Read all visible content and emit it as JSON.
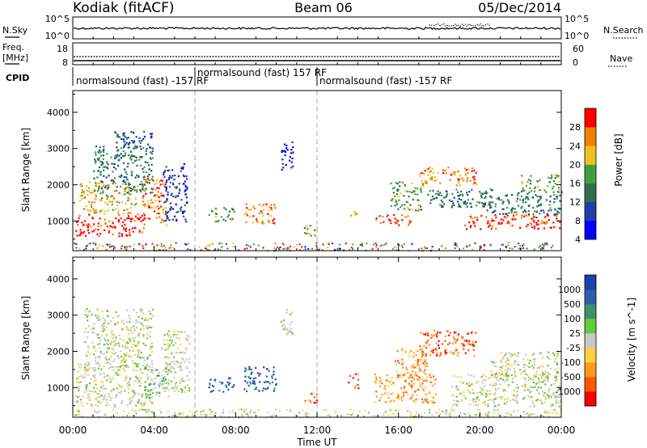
{
  "header": {
    "station": "Kodiak (fitACF)",
    "beam": "Beam 06",
    "date": "05/Dec/2014"
  },
  "noise_panel": {
    "left_label": "N.Sky",
    "right_label": "N.Search",
    "left_ticks": [
      "10^5",
      "10^0"
    ],
    "right_ticks": [
      "10^5",
      "10^0"
    ]
  },
  "freq_panel": {
    "left_label_line1": "Freq.",
    "left_label_line2": "[MHz]",
    "right_label": "Nave",
    "left_ticks": [
      "18",
      "8"
    ],
    "right_ticks": [
      "60",
      "0"
    ]
  },
  "cpid": {
    "label": "CPID",
    "segments": [
      {
        "start_hour": 0,
        "end_hour": 6,
        "text": "normalsound (fast) -157 RF"
      },
      {
        "start_hour": 6,
        "end_hour": 12,
        "text": "normalsound (fast) 157 RF"
      },
      {
        "start_hour": 12,
        "end_hour": 24,
        "text": "normalsound (fast) -157 RF"
      }
    ]
  },
  "x_axis": {
    "label": "Time UT",
    "range_hours": [
      0,
      24
    ],
    "tick_labels": [
      "00:00",
      "04:00",
      "08:00",
      "12:00",
      "16:00",
      "20:00",
      "00:00"
    ]
  },
  "chart_data": [
    {
      "type": "heatmap",
      "panel": "power",
      "ylabel": "Slant Range [km]",
      "ylim": [
        180,
        4600
      ],
      "yticks": [
        1000,
        2000,
        3000,
        4000
      ],
      "xlim": [
        0,
        24
      ],
      "colorbar": {
        "label": "Power [dB]",
        "tick_labels": [
          "28",
          "24",
          "20",
          "16",
          "12",
          "8",
          "4"
        ],
        "colors": [
          "#0000ff",
          "#1f3fa8",
          "#2f6f4f",
          "#3f9f3f",
          "#f0c020",
          "#f08000",
          "#ff0000"
        ]
      },
      "scatter_regions": [
        {
          "t": [
            0.1,
            3.5
          ],
          "r": [
            600,
            1200
          ],
          "level": 6
        },
        {
          "t": [
            0.3,
            3.2
          ],
          "r": [
            1200,
            2100
          ],
          "level": 4
        },
        {
          "t": [
            1.0,
            3.9
          ],
          "r": [
            1800,
            3100
          ],
          "level": 2
        },
        {
          "t": [
            2.0,
            3.9
          ],
          "r": [
            3000,
            3500
          ],
          "level": 1
        },
        {
          "t": [
            3.4,
            4.6
          ],
          "r": [
            900,
            2200
          ],
          "level": 5
        },
        {
          "t": [
            4.4,
            5.6
          ],
          "r": [
            1000,
            2600
          ],
          "level": 1
        },
        {
          "t": [
            6.6,
            7.9
          ],
          "r": [
            1000,
            1400
          ],
          "level": 3
        },
        {
          "t": [
            8.4,
            9.9
          ],
          "r": [
            900,
            1500
          ],
          "level": 5
        },
        {
          "t": [
            10.2,
            10.8
          ],
          "r": [
            2400,
            3200
          ],
          "level": 0
        },
        {
          "t": [
            11.3,
            12.0
          ],
          "r": [
            600,
            900
          ],
          "level": 3
        },
        {
          "t": [
            13.5,
            14.0
          ],
          "r": [
            1100,
            1300
          ],
          "level": 4
        },
        {
          "t": [
            14.8,
            16.6
          ],
          "r": [
            900,
            1200
          ],
          "level": 6
        },
        {
          "t": [
            15.6,
            17.2
          ],
          "r": [
            1300,
            2100
          ],
          "level": 3
        },
        {
          "t": [
            17.0,
            19.8
          ],
          "r": [
            2000,
            2500
          ],
          "level": 5
        },
        {
          "t": [
            17.4,
            20.9
          ],
          "r": [
            1400,
            1900
          ],
          "level": 2
        },
        {
          "t": [
            19.2,
            23.9
          ],
          "r": [
            800,
            1200
          ],
          "level": 6
        },
        {
          "t": [
            20.0,
            23.9
          ],
          "r": [
            1200,
            1800
          ],
          "level": 2
        },
        {
          "t": [
            22.0,
            24.0
          ],
          "r": [
            1800,
            2300
          ],
          "level": 3
        }
      ]
    },
    {
      "type": "heatmap",
      "panel": "velocity",
      "ylabel": "Slant Range [km]",
      "ylim": [
        180,
        4600
      ],
      "yticks": [
        1000,
        2000,
        3000,
        4000
      ],
      "xlim": [
        0,
        24
      ],
      "colorbar": {
        "label": "Velocity [m s^-1]",
        "tick_labels": [
          "1000",
          "500",
          "100",
          "25",
          "-25",
          "-100",
          "-500",
          "-1000"
        ],
        "colors": [
          "#ff0000",
          "#ff5a00",
          "#ff9a20",
          "#ffd040",
          "#c8c8c8",
          "#60cc40",
          "#3f8f6f",
          "#2a5fa8",
          "#1a3fb0"
        ]
      },
      "scatter_regions": [
        {
          "t": [
            0.1,
            3.9
          ],
          "r": [
            500,
            1700
          ],
          "level": 4
        },
        {
          "t": [
            0.5,
            3.9
          ],
          "r": [
            1500,
            3200
          ],
          "level": 4
        },
        {
          "t": [
            3.5,
            4.7
          ],
          "r": [
            700,
            1600
          ],
          "level": 5
        },
        {
          "t": [
            4.3,
            5.7
          ],
          "r": [
            900,
            2600
          ],
          "level": 4
        },
        {
          "t": [
            6.6,
            7.9
          ],
          "r": [
            900,
            1300
          ],
          "level": 7
        },
        {
          "t": [
            8.4,
            10.0
          ],
          "r": [
            900,
            1600
          ],
          "level": 7
        },
        {
          "t": [
            10.2,
            10.8
          ],
          "r": [
            2400,
            3200
          ],
          "level": 4
        },
        {
          "t": [
            11.3,
            12.0
          ],
          "r": [
            600,
            900
          ],
          "level": 1
        },
        {
          "t": [
            13.5,
            14.0
          ],
          "r": [
            1000,
            1400
          ],
          "level": 1
        },
        {
          "t": [
            14.8,
            17.8
          ],
          "r": [
            600,
            1400
          ],
          "level": 2
        },
        {
          "t": [
            15.8,
            17.4
          ],
          "r": [
            1300,
            2100
          ],
          "level": 2
        },
        {
          "t": [
            17.0,
            19.8
          ],
          "r": [
            1900,
            2600
          ],
          "level": 1
        },
        {
          "t": [
            18.6,
            23.9
          ],
          "r": [
            500,
            1400
          ],
          "level": 4
        },
        {
          "t": [
            20.5,
            23.9
          ],
          "r": [
            1200,
            2000
          ],
          "level": 4
        }
      ]
    }
  ]
}
